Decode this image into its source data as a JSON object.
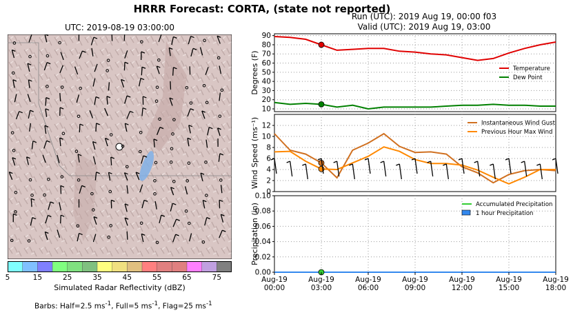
{
  "figure_title": "HRRR Forecast: CORTA, (state not reported)",
  "run_line": "Run (UTC): 2019 Aug 19, 00:00 f03",
  "valid_line": "Valid (UTC): 2019 Aug 19, 03:00",
  "map": {
    "title": "UTC: 2019-08-19 03:00:00",
    "colorbar": {
      "label": "Simulated Radar Reflectivity (dBZ)",
      "ticks": [
        "5",
        "15",
        "25",
        "35",
        "45",
        "55",
        "65",
        "75"
      ],
      "colors": [
        "#80ffff",
        "#80c0ff",
        "#8080ff",
        "#80ff80",
        "#80e080",
        "#80c080",
        "#ffff80",
        "#f0e080",
        "#e0c080",
        "#ff8080",
        "#e08080",
        "#e08080",
        "#ff80ff",
        "#c0a0e0",
        "#808080"
      ]
    },
    "barb_note_prefix": "Barbs: Half=2.5 ms",
    "barb_note_mid": ", Full=5 ms",
    "barb_note_end": ", Flag=25 ms"
  },
  "chart_data": [
    {
      "type": "line",
      "ylabel": "Degrees (F)",
      "ylim": [
        7,
        92
      ],
      "yticks": [
        10,
        20,
        30,
        40,
        50,
        60,
        70,
        80,
        90
      ],
      "x": [
        0,
        1,
        2,
        3,
        4,
        5,
        6,
        7,
        8,
        9,
        10,
        11,
        12,
        13,
        14,
        15,
        16,
        17,
        18
      ],
      "series": [
        {
          "name": "Temperature",
          "color": "#e00000",
          "values": [
            89,
            88,
            86,
            80,
            74,
            75,
            76,
            76,
            73,
            72,
            70,
            69,
            66,
            63,
            65,
            71,
            76,
            80,
            83
          ]
        },
        {
          "name": "Dew Point",
          "color": "#008000",
          "values": [
            17,
            15,
            16,
            15,
            12,
            14,
            10,
            12,
            12,
            12,
            12,
            13,
            14,
            14,
            15,
            14,
            14,
            13,
            13
          ]
        }
      ],
      "current_markers": [
        {
          "series": "Temperature",
          "x": 3,
          "y": 80
        },
        {
          "series": "Dew Point",
          "x": 3,
          "y": 15
        }
      ],
      "grid": true,
      "legend": "right"
    },
    {
      "type": "line",
      "ylabel": "Wind Speed (ms⁻¹)",
      "ylim": [
        0,
        14
      ],
      "yticks": [
        0,
        2,
        4,
        6,
        8,
        10,
        12
      ],
      "x": [
        0,
        1,
        2,
        3,
        4,
        5,
        6,
        7,
        8,
        9,
        10,
        11,
        12,
        13,
        14,
        15,
        16,
        17,
        18
      ],
      "series": [
        {
          "name": "Instantaneous Wind Gust",
          "color": "#d07020",
          "values": [
            10.5,
            7.5,
            6.8,
            5.2,
            2.5,
            7.5,
            8.8,
            10.5,
            8.2,
            7.1,
            7.2,
            6.8,
            4.5,
            3.4,
            1.6,
            3.1,
            3.8,
            4.0,
            3.8
          ]
        },
        {
          "name": "Previous Hour Max Wind",
          "color": "#ff8800",
          "values": [
            7.2,
            7.3,
            5.5,
            4.1,
            4.0,
            5.2,
            6.4,
            8.1,
            7.3,
            5.8,
            5.1,
            5.1,
            4.8,
            3.9,
            2.6,
            1.4,
            2.6,
            4.0,
            4.0
          ]
        }
      ],
      "current_markers": [
        {
          "series": "Instantaneous Wind Gust",
          "x": 3,
          "y": 5.2
        },
        {
          "series": "Previous Hour Max Wind",
          "x": 3,
          "y": 4.1
        }
      ],
      "grid": true,
      "legend": "top-right"
    },
    {
      "type": "area",
      "ylabel": "Precipitation (in)",
      "ylim": [
        0,
        0.1
      ],
      "yticks": [
        0.0,
        0.02,
        0.04,
        0.06,
        0.08,
        0.1
      ],
      "x": [
        0,
        1,
        2,
        3,
        4,
        5,
        6,
        7,
        8,
        9,
        10,
        11,
        12,
        13,
        14,
        15,
        16,
        17,
        18
      ],
      "series": [
        {
          "name": "Accumulated Precipitation",
          "color": "#33cc33",
          "values": [
            0,
            0,
            0,
            0,
            0,
            0,
            0,
            0,
            0,
            0,
            0,
            0,
            0,
            0,
            0,
            0,
            0,
            0,
            0
          ]
        },
        {
          "name": "1 hour Precipitation",
          "color": "#3388ee",
          "values": [
            0,
            0,
            0,
            0,
            0,
            0,
            0,
            0,
            0,
            0,
            0,
            0,
            0,
            0,
            0,
            0,
            0,
            0,
            0
          ]
        }
      ],
      "current_markers": [
        {
          "series": "Accumulated Precipitation",
          "x": 3,
          "y": 0
        }
      ],
      "xtick_labels": [
        {
          "hour": 0,
          "l1": "Aug-19",
          "l2": "00:00"
        },
        {
          "hour": 3,
          "l1": "Aug-19",
          "l2": "03:00"
        },
        {
          "hour": 6,
          "l1": "Aug-19",
          "l2": "06:00"
        },
        {
          "hour": 9,
          "l1": "Aug-19",
          "l2": "09:00"
        },
        {
          "hour": 12,
          "l1": "Aug-19",
          "l2": "12:00"
        },
        {
          "hour": 15,
          "l1": "Aug-19",
          "l2": "15:00"
        },
        {
          "hour": 18,
          "l1": "Aug-19",
          "l2": "18:00"
        }
      ],
      "grid": true,
      "legend": "top-right"
    }
  ]
}
